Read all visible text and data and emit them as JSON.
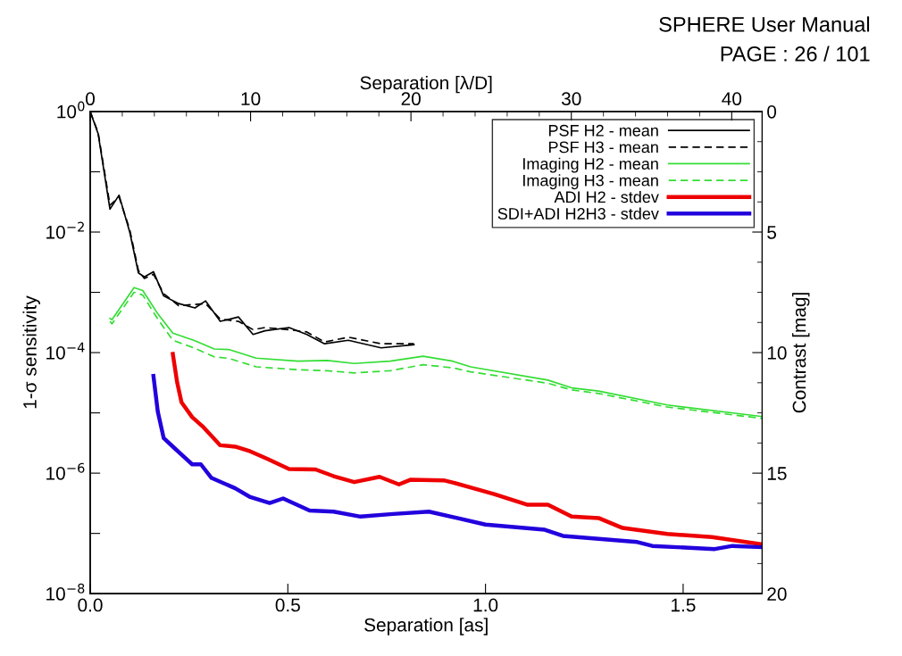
{
  "chart_data": {
    "type": "line",
    "xlabel": "Separation [as]",
    "ylabel": "1-σ sensitivity",
    "x2label": "Separation [λ/D]",
    "y2label": "Contrast [mag]",
    "annotations": [
      "SPHERE User Manual",
      "PAGE : 26 / 101"
    ],
    "log": "y",
    "grid": false,
    "legend": "top right",
    "marker": "none",
    "xlim": [
      0,
      1.7
    ],
    "xticks": [
      {
        "value": 0,
        "label": "0.0"
      },
      {
        "value": 0.5,
        "label": "0.5"
      },
      {
        "value": 1.0,
        "label": "1.0"
      },
      {
        "value": 1.5,
        "label": "1.5"
      }
    ],
    "x2lim": [
      0,
      41.9
    ],
    "x2ticks": [
      0,
      10,
      20,
      30,
      40
    ],
    "ylim": [
      1e-08,
      1
    ],
    "yticks": [
      {
        "value": 1e-08,
        "label": "10$^{−8}$"
      },
      {
        "value": 1e-07,
        "label": null
      },
      {
        "value": 1e-06,
        "label": "10$^{−6}$"
      },
      {
        "value": 1e-05,
        "label": null
      },
      {
        "value": 0.0001,
        "label": "10$^{−4}$"
      },
      {
        "value": 0.001,
        "label": null
      },
      {
        "value": 0.01,
        "label": "10$^{−2}$"
      },
      {
        "value": 0.1,
        "label": null
      },
      {
        "value": 1,
        "label": "10$^{0}$"
      }
    ],
    "y2lim": [
      20,
      0
    ],
    "y2ticks": [
      0,
      5,
      10,
      15,
      20
    ],
    "series": [
      {
        "name": "PSF H2 - mean",
        "color": "#000000",
        "line_style": "solid",
        "x": [
          0,
          0.02,
          0.05,
          0.073,
          0.1,
          0.122,
          0.137,
          0.16,
          0.186,
          0.224,
          0.265,
          0.292,
          0.329,
          0.375,
          0.412,
          0.442,
          0.503,
          0.548,
          0.593,
          0.653,
          0.736,
          0.819
        ],
        "values": [
          1,
          0.43,
          0.024,
          0.041,
          0.01,
          0.0021,
          0.0018,
          0.0022,
          0.00087,
          0.00065,
          0.00055,
          0.00072,
          0.00033,
          0.00039,
          0.0002,
          0.00023,
          0.00026,
          0.0002,
          0.00014,
          0.00016,
          0.00012,
          0.000135
        ]
      },
      {
        "name": "PSF H3 - mean",
        "color": "#000000",
        "line_style": "dashed",
        "x": [
          0,
          0.02,
          0.05,
          0.073,
          0.1,
          0.122,
          0.137,
          0.16,
          0.186,
          0.224,
          0.265,
          0.292,
          0.329,
          0.375,
          0.412,
          0.442,
          0.503,
          0.548,
          0.593,
          0.653,
          0.736,
          0.819
        ],
        "values": [
          1,
          0.45,
          0.028,
          0.038,
          0.011,
          0.0023,
          0.0017,
          0.002,
          0.00095,
          0.0006,
          0.00063,
          0.00065,
          0.00036,
          0.00033,
          0.00024,
          0.00026,
          0.00024,
          0.00022,
          0.00015,
          0.00018,
          0.00014,
          0.00014
        ]
      },
      {
        "name": "Imaging H2 - mean",
        "color": "#33dd33",
        "line_style": "solid",
        "x": [
          0.05,
          0.055,
          0.111,
          0.133,
          0.171,
          0.209,
          0.262,
          0.314,
          0.352,
          0.42,
          0.525,
          0.6,
          0.668,
          0.759,
          0.842,
          0.917,
          0.962,
          1.158,
          1.218,
          1.286,
          1.46,
          1.7
        ],
        "values": [
          0.00037,
          0.00035,
          0.0012,
          0.00107,
          0.00044,
          0.00021,
          0.00016,
          0.000115,
          0.000112,
          8.1e-05,
          7.2e-05,
          7.4e-05,
          6.6e-05,
          7.2e-05,
          8.7e-05,
          7.2e-05,
          5.8e-05,
          3.5e-05,
          2.6e-05,
          2.3e-05,
          1.35e-05,
          8.7e-06
        ]
      },
      {
        "name": "Imaging H3 - mean",
        "color": "#33dd33",
        "line_style": "dashed",
        "x": [
          0.05,
          0.055,
          0.111,
          0.133,
          0.171,
          0.209,
          0.262,
          0.314,
          0.352,
          0.42,
          0.525,
          0.6,
          0.668,
          0.759,
          0.842,
          0.917,
          0.962,
          1.158,
          1.218,
          1.286,
          1.46,
          1.7
        ],
        "values": [
          0.00033,
          0.0003,
          0.001,
          0.0009,
          0.00036,
          0.00016,
          0.00012,
          8.5e-05,
          8e-05,
          5.8e-05,
          5.2e-05,
          5e-05,
          4.6e-05,
          5e-05,
          6.3e-05,
          5.6e-05,
          4.8e-05,
          3.1e-05,
          2.4e-05,
          2.1e-05,
          1.25e-05,
          8.1e-06
        ]
      },
      {
        "name": "ADI H2 - stdev",
        "color": "#ee0000",
        "line_style": "solid",
        "x": [
          0.209,
          0.22,
          0.231,
          0.258,
          0.284,
          0.329,
          0.367,
          0.405,
          0.45,
          0.503,
          0.57,
          0.616,
          0.668,
          0.732,
          0.781,
          0.811,
          0.894,
          0.917,
          0.97,
          1.022,
          1.105,
          1.158,
          1.218,
          1.286,
          1.347,
          1.46,
          1.573,
          1.7
        ],
        "values": [
          9.5e-05,
          3.2e-05,
          1.5e-05,
          8.5e-06,
          6e-06,
          2.9e-06,
          2.75e-06,
          2.3e-06,
          1.7e-06,
          1.17e-06,
          1.15e-06,
          8.9e-07,
          7.1e-07,
          8.7e-07,
          6.5e-07,
          7.8e-07,
          7.6e-07,
          7e-07,
          5.6e-07,
          4.5e-07,
          3e-07,
          3e-07,
          1.9e-07,
          1.8e-07,
          1.23e-07,
          9.8e-08,
          8.7e-08,
          6.6e-08
        ]
      },
      {
        "name": "SDI+ADI H2H3 - stdev",
        "color": "#2200dd",
        "line_style": "solid",
        "x": [
          0.16,
          0.171,
          0.186,
          0.216,
          0.258,
          0.28,
          0.307,
          0.367,
          0.405,
          0.454,
          0.488,
          0.555,
          0.616,
          0.684,
          0.766,
          0.857,
          1.0,
          1.15,
          1.196,
          1.384,
          1.422,
          1.58,
          1.625,
          1.7
        ],
        "values": [
          4.1e-05,
          1.05e-05,
          3.8e-06,
          2.5e-06,
          1.4e-06,
          1.4e-06,
          8.3e-07,
          5.6e-07,
          4e-07,
          3.2e-07,
          3.8e-07,
          2.4e-07,
          2.3e-07,
          1.9e-07,
          2.1e-07,
          2.3e-07,
          1.4e-07,
          1.15e-07,
          9.1e-08,
          7.2e-08,
          6.2e-08,
          5.5e-08,
          6.2e-08,
          5.9e-08
        ]
      }
    ]
  }
}
